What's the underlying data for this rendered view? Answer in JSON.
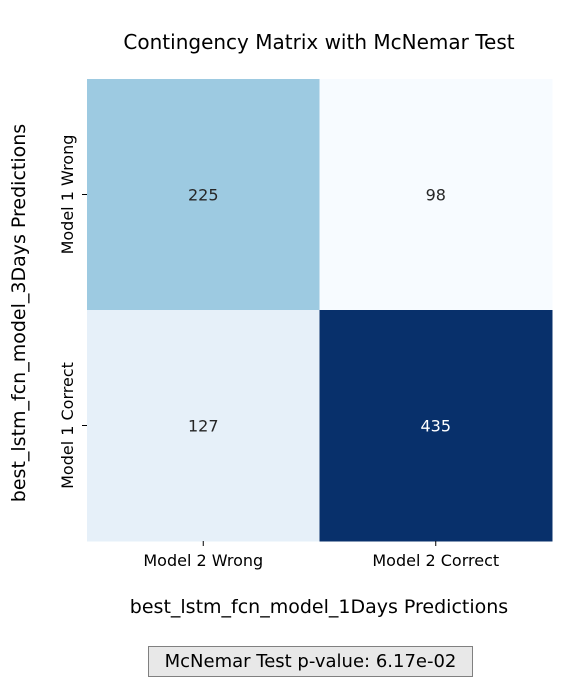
{
  "chart_data": {
    "type": "heatmap",
    "title": "Contingency Matrix with McNemar Test",
    "xlabel": "best_lstm_fcn_model_1Days Predictions",
    "ylabel": "best_lstm_fcn_model_3Days Predictions",
    "x_categories": [
      "Model 2 Wrong",
      "Model 2 Correct"
    ],
    "y_categories": [
      "Model 1 Wrong",
      "Model 1 Correct"
    ],
    "values": [
      [
        225,
        98
      ],
      [
        127,
        435
      ]
    ],
    "colormap": [
      "#f7fbff",
      "#deebf7",
      "#c6dbef",
      "#9ecae1",
      "#6baed6",
      "#4292c6",
      "#2171b5",
      "#08519c",
      "#08306b"
    ],
    "vmin": 98,
    "vmax": 435,
    "colorbar": false
  },
  "annotation": {
    "pvalue_text": "McNemar Test p-value: 6.17e-02"
  }
}
